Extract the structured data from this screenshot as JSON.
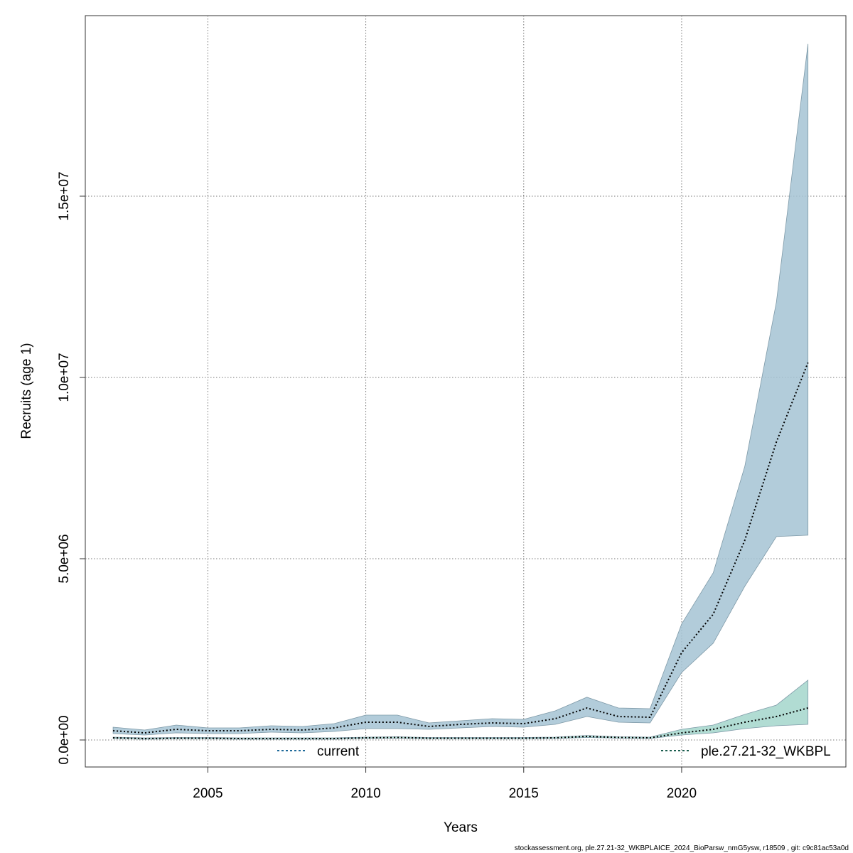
{
  "chart_data": {
    "type": "band-line",
    "xlabel": "Years",
    "ylabel": "Recruits (age 1)",
    "footer": "stockassessment.org, ple.27.21-32_WKBPLAICE_2024_BioParsw_nmG5ysw, r18509 , git: c9c81ac53a0d",
    "x": [
      2002,
      2003,
      2004,
      2005,
      2006,
      2007,
      2008,
      2009,
      2010,
      2011,
      2012,
      2013,
      2014,
      2015,
      2016,
      2017,
      2018,
      2019,
      2020,
      2021,
      2022,
      2023,
      2024
    ],
    "series": [
      {
        "name": "current",
        "color": "#1f6a9a",
        "band_color": "#a5c3d4",
        "values": [
          255000,
          196000,
          294000,
          255000,
          255000,
          294000,
          275000,
          333000,
          490000,
          490000,
          373000,
          431000,
          471000,
          451000,
          588000,
          882000,
          647000,
          627000,
          2410000,
          3470000,
          5510000,
          8220000,
          10410000
        ],
        "upper": [
          353000,
          275000,
          412000,
          333000,
          333000,
          392000,
          373000,
          451000,
          686000,
          686000,
          471000,
          529000,
          588000,
          569000,
          804000,
          1180000,
          882000,
          863000,
          3200000,
          4610000,
          7550000,
          12080000,
          19200000
        ],
        "lower": [
          176000,
          137000,
          196000,
          176000,
          176000,
          216000,
          196000,
          235000,
          314000,
          314000,
          294000,
          333000,
          373000,
          353000,
          431000,
          647000,
          490000,
          471000,
          1860000,
          2670000,
          4240000,
          5610000,
          5650000
        ]
      },
      {
        "name": "ple.27.21-32_WKBPL",
        "color": "#1b5e4f",
        "band_color": "#a3d6cb",
        "values": [
          59000,
          39000,
          49000,
          49000,
          39000,
          39000,
          39000,
          39000,
          59000,
          69000,
          49000,
          49000,
          49000,
          49000,
          59000,
          98000,
          69000,
          59000,
          196000,
          294000,
          490000,
          647000,
          882000
        ],
        "upper": [
          79000,
          59000,
          69000,
          69000,
          59000,
          59000,
          59000,
          59000,
          79000,
          89000,
          69000,
          69000,
          69000,
          69000,
          79000,
          125000,
          89000,
          79000,
          294000,
          412000,
          706000,
          961000,
          1650000
        ],
        "lower": [
          39000,
          20000,
          29000,
          29000,
          20000,
          20000,
          20000,
          20000,
          39000,
          49000,
          29000,
          29000,
          29000,
          29000,
          39000,
          69000,
          49000,
          39000,
          137000,
          196000,
          314000,
          392000,
          431000
        ]
      }
    ],
    "xlim": [
      2001.12,
      2025.2
    ],
    "ylim": [
      -745000,
      19980000
    ],
    "xticks": [
      2005,
      2010,
      2015,
      2020
    ],
    "yticks": [
      {
        "value": 0,
        "label": "0.0e+00"
      },
      {
        "value": 5000000,
        "label": "5.0e+06"
      },
      {
        "value": 10000000,
        "label": "1.0e+07"
      },
      {
        "value": 15000000,
        "label": "1.5e+07"
      }
    ],
    "grid": true
  }
}
